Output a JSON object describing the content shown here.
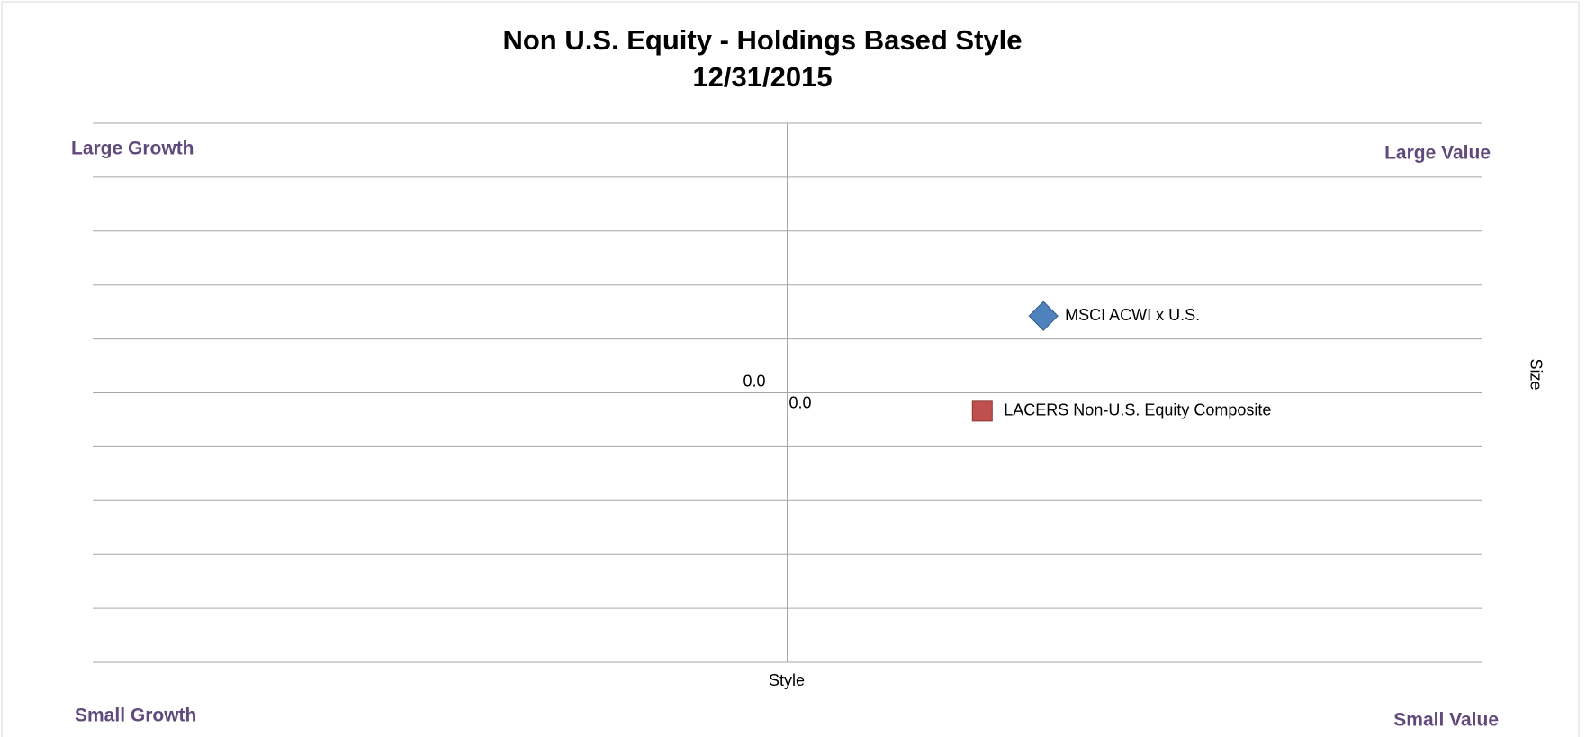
{
  "chart_data": {
    "type": "scatter",
    "title": "Non U.S. Equity - Holdings Based Style",
    "subtitle": "12/31/2015",
    "x_label": "Style",
    "y_label": "Size",
    "quadrant_labels": {
      "top_left": "Large Growth",
      "top_right": "Large Value",
      "bottom_left": "Small Growth",
      "bottom_right": "Small Value"
    },
    "xlim": [
      -100,
      100
    ],
    "ylim": [
      -100,
      100
    ],
    "xticks": [
      {
        "value": 0,
        "label": "0.0"
      }
    ],
    "yticks": [
      {
        "value": 0,
        "label": "0.0"
      }
    ],
    "ygrid": [
      -100,
      -80,
      -60,
      -40,
      -20,
      0,
      20,
      40,
      60,
      80,
      100
    ],
    "grid": true,
    "series": [
      {
        "name": "MSCI ACWI x U.S.",
        "marker": "diamond",
        "color": "#4f81bd",
        "x": [
          36.9
        ],
        "values": [
          28.5
        ]
      },
      {
        "name": "LACERS Non-U.S. Equity Composite",
        "marker": "square",
        "color": "#c0504d",
        "x": [
          28.1
        ],
        "values": [
          -6.8
        ]
      }
    ]
  }
}
